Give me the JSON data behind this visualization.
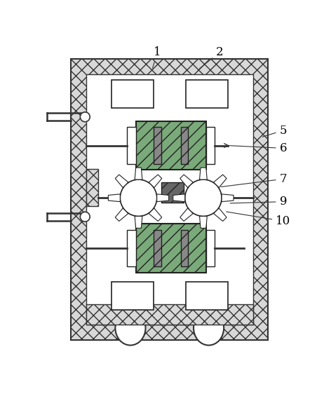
{
  "figsize": [
    4.62,
    5.62
  ],
  "dpi": 100,
  "bg_color": "#ffffff",
  "wall_fc": "#d8d8d8",
  "wall_ec": "#333333",
  "inner_bg": "#ffffff",
  "hatch_wall": "xx",
  "roller_fc": "#7aaa7a",
  "roller_ec": "#222222",
  "roller_hatch": "//",
  "plate_fc": "#888888",
  "plate_ec": "#222222",
  "box_fc": "#ffffff",
  "box_ec": "#222222",
  "fan_fc": "#ffffff",
  "fan_ec": "#222222",
  "blade_fc": "#ffffff",
  "blade_ec": "#222222",
  "midbox_fc": "#666666",
  "midbox_ec": "#222222",
  "side_hatch_fc": "#d8d8d8",
  "side_hatch_ec": "#333333",
  "wheel_fc": "#ffffff",
  "wheel_ec": "#333333",
  "label_fontsize": 12,
  "leader_lw": 0.8,
  "leader_color": "#333333"
}
